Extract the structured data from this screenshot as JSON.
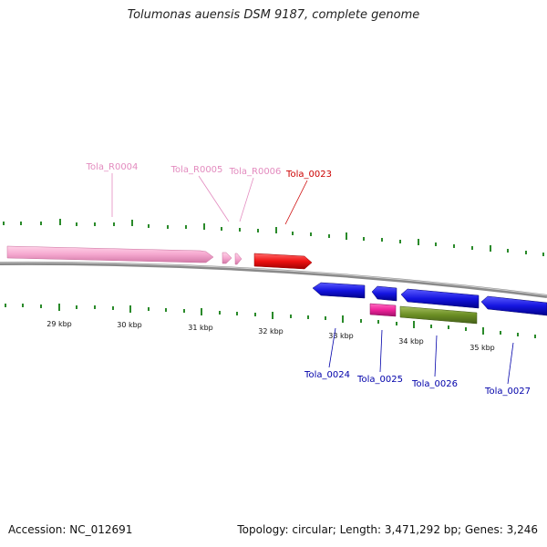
{
  "title": "Tolumonas auensis DSM 9187, complete genome",
  "footer": {
    "accession": "Accession: NC_012691",
    "summary": "Topology: circular; Length: 3,471,292 bp; Genes: 3,246"
  },
  "colors": {
    "rna_label": "#e38bbf",
    "rna_feature": "#f2a6cd",
    "gene_forward_label": "#cc0000",
    "gene_forward": "#e01010",
    "gene_reverse_label": "#0000aa",
    "gene_reverse": "#1111dd",
    "gene_magenta": "#ee2299",
    "gene_olive": "#6b8e23",
    "tick": "#2a8a2a",
    "backbone": "#8c8c8c"
  },
  "scale": {
    "labels": [
      "29 kbp",
      "30 kbp",
      "31 kbp",
      "32 kbp",
      "33 kbp",
      "34 kbp",
      "35 kbp"
    ]
  },
  "features": [
    {
      "label": "Tola_R0004",
      "type": "rna"
    },
    {
      "label": "Tola_R0005",
      "type": "rna"
    },
    {
      "label": "Tola_R0006",
      "type": "rna"
    },
    {
      "label": "Tola_0023",
      "type": "gene_forward"
    },
    {
      "label": "Tola_0024",
      "type": "gene_reverse"
    },
    {
      "label": "Tola_0025",
      "type": "gene_reverse"
    },
    {
      "label": "Tola_0026",
      "type": "gene_reverse"
    },
    {
      "label": "Tola_0027",
      "type": "gene_reverse"
    }
  ]
}
